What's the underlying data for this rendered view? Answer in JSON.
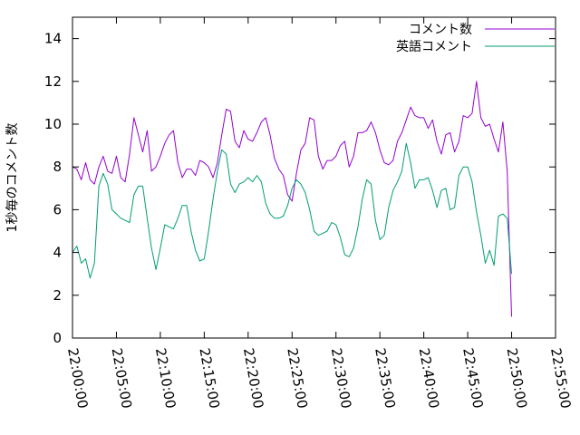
{
  "chart_data": {
    "type": "line",
    "ylabel": "1秒毎のコメント数",
    "xlabel": "",
    "title": "",
    "xlim": [
      "22:00:00",
      "22:55:00"
    ],
    "ylim": [
      0,
      15
    ],
    "yticks": [
      0,
      2,
      4,
      6,
      8,
      10,
      12,
      14
    ],
    "xticks": [
      "22:00:00",
      "22:05:00",
      "22:10:00",
      "22:15:00",
      "22:20:00",
      "22:25:00",
      "22:30:00",
      "22:35:00",
      "22:40:00",
      "22:45:00",
      "22:50:00",
      "22:55:00"
    ],
    "legend_position": "top-right",
    "grid": false,
    "series": [
      {
        "name": "コメント数",
        "color": "#9400d3",
        "points": [
          [
            "22:00:00",
            8.0
          ],
          [
            "22:00:30",
            7.9
          ],
          [
            "22:01:00",
            7.4
          ],
          [
            "22:01:30",
            8.2
          ],
          [
            "22:02:00",
            7.4
          ],
          [
            "22:02:30",
            7.2
          ],
          [
            "22:03:00",
            8.0
          ],
          [
            "22:03:30",
            8.5
          ],
          [
            "22:04:00",
            7.8
          ],
          [
            "22:04:30",
            7.7
          ],
          [
            "22:05:00",
            8.5
          ],
          [
            "22:05:30",
            7.5
          ],
          [
            "22:06:00",
            7.3
          ],
          [
            "22:06:30",
            8.6
          ],
          [
            "22:07:00",
            10.3
          ],
          [
            "22:07:30",
            9.5
          ],
          [
            "22:08:00",
            8.7
          ],
          [
            "22:08:30",
            9.7
          ],
          [
            "22:09:00",
            7.8
          ],
          [
            "22:09:30",
            8.0
          ],
          [
            "22:10:00",
            8.5
          ],
          [
            "22:10:30",
            9.1
          ],
          [
            "22:11:00",
            9.5
          ],
          [
            "22:11:30",
            9.7
          ],
          [
            "22:12:00",
            8.2
          ],
          [
            "22:12:30",
            7.5
          ],
          [
            "22:13:00",
            7.9
          ],
          [
            "22:13:30",
            7.9
          ],
          [
            "22:14:00",
            7.6
          ],
          [
            "22:14:30",
            8.3
          ],
          [
            "22:15:00",
            8.2
          ],
          [
            "22:15:30",
            8.0
          ],
          [
            "22:16:00",
            7.5
          ],
          [
            "22:16:30",
            8.2
          ],
          [
            "22:17:00",
            9.5
          ],
          [
            "22:17:30",
            10.7
          ],
          [
            "22:18:00",
            10.6
          ],
          [
            "22:18:30",
            9.2
          ],
          [
            "22:19:00",
            8.9
          ],
          [
            "22:19:30",
            9.7
          ],
          [
            "22:20:00",
            9.3
          ],
          [
            "22:20:30",
            9.2
          ],
          [
            "22:21:00",
            9.6
          ],
          [
            "22:21:30",
            10.1
          ],
          [
            "22:22:00",
            10.3
          ],
          [
            "22:22:30",
            9.5
          ],
          [
            "22:23:00",
            8.4
          ],
          [
            "22:23:30",
            7.9
          ],
          [
            "22:24:00",
            7.6
          ],
          [
            "22:24:30",
            6.7
          ],
          [
            "22:25:00",
            6.4
          ],
          [
            "22:25:30",
            7.7
          ],
          [
            "22:26:00",
            8.8
          ],
          [
            "22:26:30",
            9.1
          ],
          [
            "22:27:00",
            10.3
          ],
          [
            "22:27:30",
            10.2
          ],
          [
            "22:28:00",
            8.5
          ],
          [
            "22:28:30",
            7.9
          ],
          [
            "22:29:00",
            8.3
          ],
          [
            "22:29:30",
            8.3
          ],
          [
            "22:30:00",
            8.5
          ],
          [
            "22:30:30",
            9.0
          ],
          [
            "22:31:00",
            9.2
          ],
          [
            "22:31:30",
            8.0
          ],
          [
            "22:32:00",
            8.5
          ],
          [
            "22:32:30",
            9.6
          ],
          [
            "22:33:00",
            9.6
          ],
          [
            "22:33:30",
            9.7
          ],
          [
            "22:34:00",
            10.1
          ],
          [
            "22:34:30",
            9.6
          ],
          [
            "22:35:00",
            8.8
          ],
          [
            "22:35:30",
            8.2
          ],
          [
            "22:36:00",
            8.1
          ],
          [
            "22:36:30",
            8.3
          ],
          [
            "22:37:00",
            9.2
          ],
          [
            "22:37:30",
            9.6
          ],
          [
            "22:38:00",
            10.2
          ],
          [
            "22:38:30",
            10.8
          ],
          [
            "22:39:00",
            10.4
          ],
          [
            "22:39:30",
            10.3
          ],
          [
            "22:40:00",
            10.3
          ],
          [
            "22:40:30",
            9.8
          ],
          [
            "22:41:00",
            10.2
          ],
          [
            "22:41:30",
            9.2
          ],
          [
            "22:42:00",
            8.6
          ],
          [
            "22:42:30",
            9.5
          ],
          [
            "22:43:00",
            9.6
          ],
          [
            "22:43:30",
            8.7
          ],
          [
            "22:44:00",
            9.2
          ],
          [
            "22:44:30",
            10.4
          ],
          [
            "22:45:00",
            10.3
          ],
          [
            "22:45:30",
            10.5
          ],
          [
            "22:46:00",
            12.0
          ],
          [
            "22:46:30",
            10.3
          ],
          [
            "22:47:00",
            9.9
          ],
          [
            "22:47:30",
            10.0
          ],
          [
            "22:48:00",
            9.3
          ],
          [
            "22:48:30",
            8.7
          ],
          [
            "22:49:00",
            10.1
          ],
          [
            "22:49:30",
            7.8
          ],
          [
            "22:50:00",
            1.0
          ]
        ]
      },
      {
        "name": "英語コメント",
        "color": "#009e73",
        "points": [
          [
            "22:00:00",
            4.0
          ],
          [
            "22:00:30",
            4.3
          ],
          [
            "22:01:00",
            3.5
          ],
          [
            "22:01:30",
            3.7
          ],
          [
            "22:02:00",
            2.8
          ],
          [
            "22:02:30",
            3.5
          ],
          [
            "22:03:00",
            7.1
          ],
          [
            "22:03:30",
            7.7
          ],
          [
            "22:04:00",
            7.2
          ],
          [
            "22:04:30",
            6.0
          ],
          [
            "22:05:00",
            5.8
          ],
          [
            "22:05:30",
            5.6
          ],
          [
            "22:06:00",
            5.5
          ],
          [
            "22:06:30",
            5.4
          ],
          [
            "22:07:00",
            6.7
          ],
          [
            "22:07:30",
            7.1
          ],
          [
            "22:08:00",
            7.1
          ],
          [
            "22:08:30",
            5.6
          ],
          [
            "22:09:00",
            4.2
          ],
          [
            "22:09:30",
            3.2
          ],
          [
            "22:10:00",
            4.2
          ],
          [
            "22:10:30",
            5.3
          ],
          [
            "22:11:00",
            5.2
          ],
          [
            "22:11:30",
            5.1
          ],
          [
            "22:12:00",
            5.6
          ],
          [
            "22:12:30",
            6.2
          ],
          [
            "22:13:00",
            6.2
          ],
          [
            "22:13:30",
            5.0
          ],
          [
            "22:14:00",
            4.1
          ],
          [
            "22:14:30",
            3.6
          ],
          [
            "22:15:00",
            3.7
          ],
          [
            "22:15:30",
            5.0
          ],
          [
            "22:16:00",
            6.5
          ],
          [
            "22:16:30",
            7.8
          ],
          [
            "22:17:00",
            8.8
          ],
          [
            "22:17:30",
            8.6
          ],
          [
            "22:18:00",
            7.2
          ],
          [
            "22:18:30",
            6.8
          ],
          [
            "22:19:00",
            7.2
          ],
          [
            "22:19:30",
            7.3
          ],
          [
            "22:20:00",
            7.5
          ],
          [
            "22:20:30",
            7.3
          ],
          [
            "22:21:00",
            7.6
          ],
          [
            "22:21:30",
            7.3
          ],
          [
            "22:22:00",
            6.3
          ],
          [
            "22:22:30",
            5.8
          ],
          [
            "22:23:00",
            5.6
          ],
          [
            "22:23:30",
            5.6
          ],
          [
            "22:24:00",
            5.7
          ],
          [
            "22:24:30",
            6.2
          ],
          [
            "22:25:00",
            7.0
          ],
          [
            "22:25:30",
            7.4
          ],
          [
            "22:26:00",
            7.2
          ],
          [
            "22:26:30",
            6.8
          ],
          [
            "22:27:00",
            6.0
          ],
          [
            "22:27:30",
            5.0
          ],
          [
            "22:28:00",
            4.8
          ],
          [
            "22:28:30",
            4.9
          ],
          [
            "22:29:00",
            5.0
          ],
          [
            "22:29:30",
            5.4
          ],
          [
            "22:30:00",
            5.3
          ],
          [
            "22:30:30",
            4.7
          ],
          [
            "22:31:00",
            3.9
          ],
          [
            "22:31:30",
            3.8
          ],
          [
            "22:32:00",
            4.2
          ],
          [
            "22:32:30",
            5.2
          ],
          [
            "22:33:00",
            6.5
          ],
          [
            "22:33:30",
            7.4
          ],
          [
            "22:34:00",
            7.2
          ],
          [
            "22:34:30",
            5.5
          ],
          [
            "22:35:00",
            4.6
          ],
          [
            "22:35:30",
            4.8
          ],
          [
            "22:36:00",
            6.1
          ],
          [
            "22:36:30",
            6.9
          ],
          [
            "22:37:00",
            7.3
          ],
          [
            "22:37:30",
            7.8
          ],
          [
            "22:38:00",
            9.1
          ],
          [
            "22:38:30",
            8.2
          ],
          [
            "22:39:00",
            7.0
          ],
          [
            "22:39:30",
            7.4
          ],
          [
            "22:40:00",
            7.4
          ],
          [
            "22:40:30",
            7.5
          ],
          [
            "22:41:00",
            6.9
          ],
          [
            "22:41:30",
            6.1
          ],
          [
            "22:42:00",
            6.9
          ],
          [
            "22:42:30",
            7.0
          ],
          [
            "22:43:00",
            6.0
          ],
          [
            "22:43:30",
            6.1
          ],
          [
            "22:44:00",
            7.6
          ],
          [
            "22:44:30",
            8.0
          ],
          [
            "22:45:00",
            8.0
          ],
          [
            "22:45:30",
            7.3
          ],
          [
            "22:46:00",
            5.9
          ],
          [
            "22:46:30",
            4.8
          ],
          [
            "22:47:00",
            3.5
          ],
          [
            "22:47:30",
            4.1
          ],
          [
            "22:48:00",
            3.4
          ],
          [
            "22:48:30",
            5.7
          ],
          [
            "22:49:00",
            5.8
          ],
          [
            "22:49:30",
            5.6
          ],
          [
            "22:50:00",
            3.0
          ]
        ]
      }
    ]
  }
}
